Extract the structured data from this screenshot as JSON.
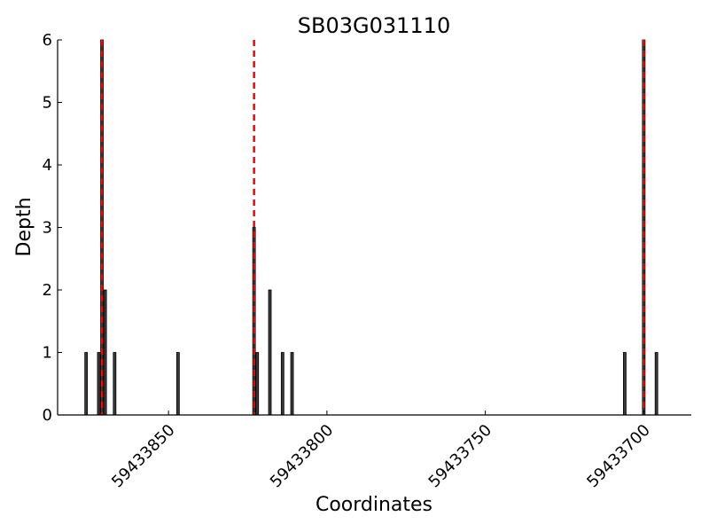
{
  "chart_data": {
    "type": "bar",
    "title": "SB03G031110",
    "xlabel": "Coordinates",
    "ylabel": "Depth",
    "x_axis_reversed": true,
    "xlim": [
      59433885,
      59433685
    ],
    "ylim": [
      0,
      6
    ],
    "x_ticks": [
      59433850,
      59433800,
      59433750,
      59433700
    ],
    "x_tick_labels": [
      "59433850",
      "59433800",
      "59433750",
      "59433700"
    ],
    "y_ticks": [
      0,
      1,
      2,
      3,
      4,
      5,
      6
    ],
    "y_tick_labels": [
      "0",
      "1",
      "2",
      "3",
      "4",
      "5",
      "6"
    ],
    "grid": false,
    "bar_color": "#3a3a3a",
    "bars": [
      {
        "x": 59433876,
        "depth": 1
      },
      {
        "x": 59433872,
        "depth": 1
      },
      {
        "x": 59433871,
        "depth": 6
      },
      {
        "x": 59433870,
        "depth": 2
      },
      {
        "x": 59433867,
        "depth": 1
      },
      {
        "x": 59433847,
        "depth": 1
      },
      {
        "x": 59433823,
        "depth": 3
      },
      {
        "x": 59433822,
        "depth": 1
      },
      {
        "x": 59433818,
        "depth": 2
      },
      {
        "x": 59433814,
        "depth": 1
      },
      {
        "x": 59433811,
        "depth": 1
      },
      {
        "x": 59433706,
        "depth": 1
      },
      {
        "x": 59433700,
        "depth": 6
      },
      {
        "x": 59433696,
        "depth": 1
      }
    ],
    "vlines": {
      "color": "#ff0000",
      "style": "dashed",
      "x": [
        59433871,
        59433823,
        59433700
      ]
    }
  }
}
